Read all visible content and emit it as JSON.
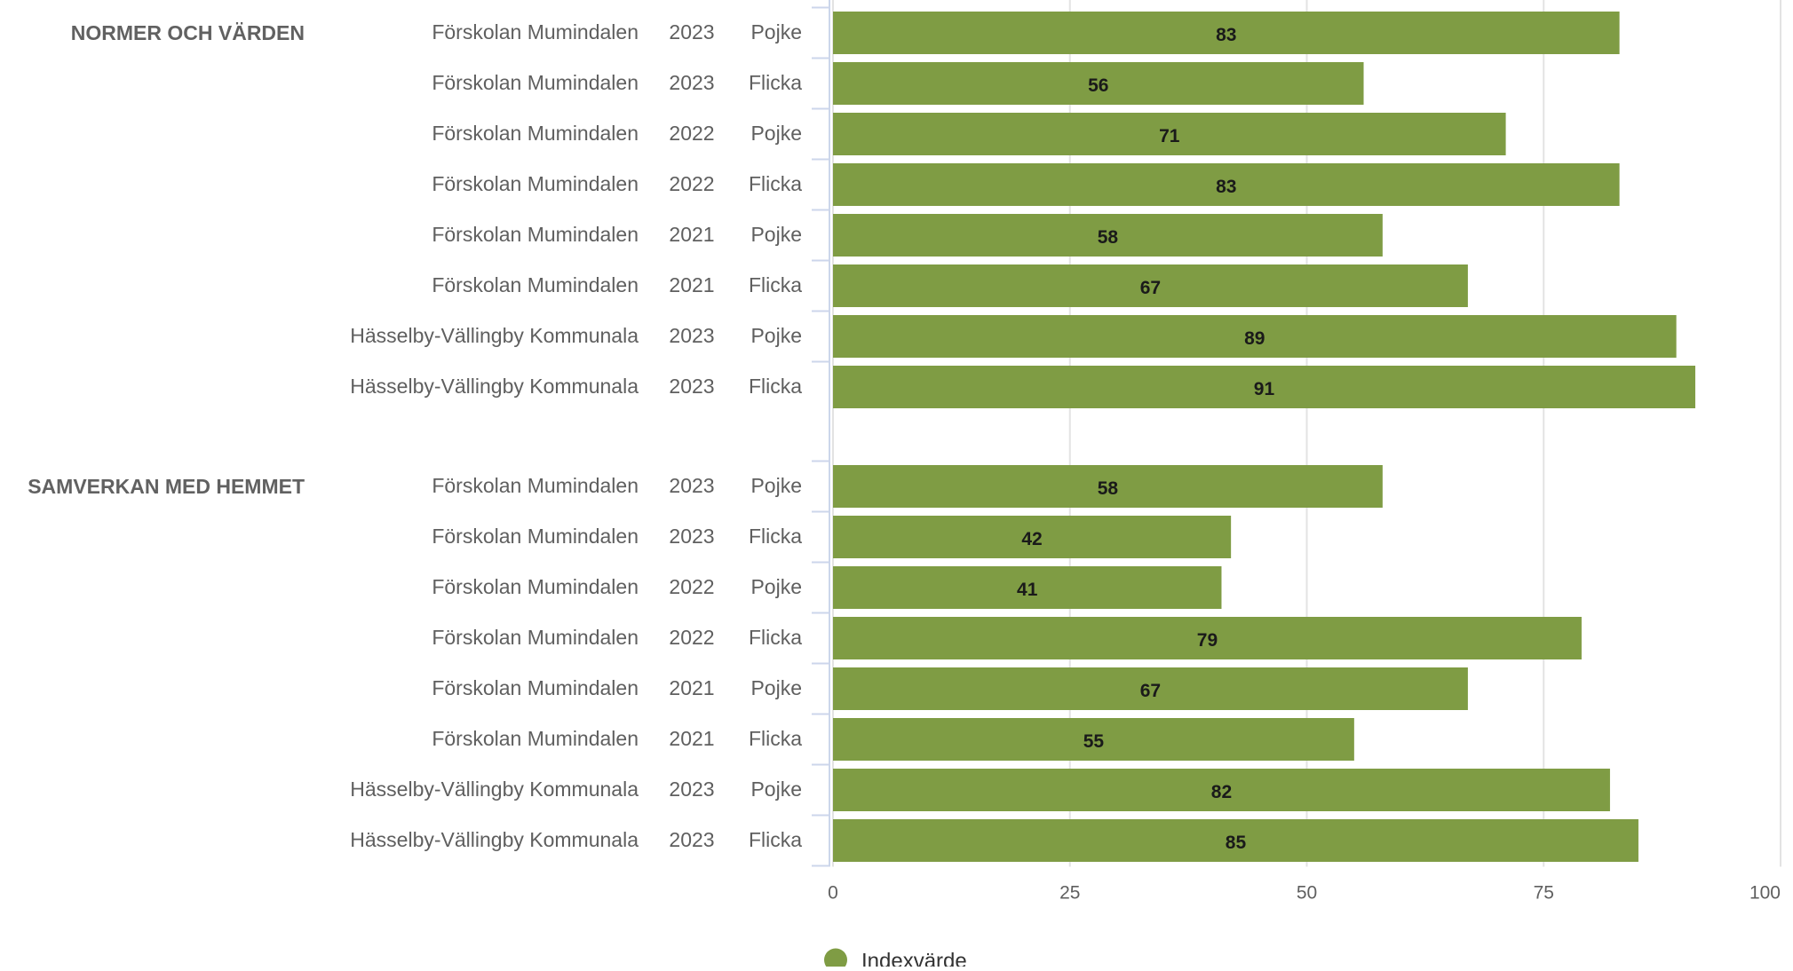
{
  "chart_data": {
    "type": "bar",
    "orientation": "horizontal",
    "xlim": [
      0,
      100
    ],
    "xticks": [
      0,
      25,
      50,
      75,
      100
    ],
    "grid": true,
    "legend_position": "bottom",
    "bar_color": "#7f9c44",
    "series": [
      {
        "name": "Indexvärde"
      }
    ],
    "groups": [
      {
        "label": "NORMER OCH VÄRDEN",
        "rows": [
          {
            "unit": "Förskolan Mumindalen",
            "year": "2023",
            "gender": "Pojke",
            "value": 83
          },
          {
            "unit": "Förskolan Mumindalen",
            "year": "2023",
            "gender": "Flicka",
            "value": 56
          },
          {
            "unit": "Förskolan Mumindalen",
            "year": "2022",
            "gender": "Pojke",
            "value": 71
          },
          {
            "unit": "Förskolan Mumindalen",
            "year": "2022",
            "gender": "Flicka",
            "value": 83
          },
          {
            "unit": "Förskolan Mumindalen",
            "year": "2021",
            "gender": "Pojke",
            "value": 58
          },
          {
            "unit": "Förskolan Mumindalen",
            "year": "2021",
            "gender": "Flicka",
            "value": 67
          },
          {
            "unit": "Hässelby-Vällingby Kommunala",
            "year": "2023",
            "gender": "Pojke",
            "value": 89
          },
          {
            "unit": "Hässelby-Vällingby Kommunala",
            "year": "2023",
            "gender": "Flicka",
            "value": 91
          }
        ]
      },
      {
        "label": "SAMVERKAN MED HEMMET",
        "rows": [
          {
            "unit": "Förskolan Mumindalen",
            "year": "2023",
            "gender": "Pojke",
            "value": 58
          },
          {
            "unit": "Förskolan Mumindalen",
            "year": "2023",
            "gender": "Flicka",
            "value": 42
          },
          {
            "unit": "Förskolan Mumindalen",
            "year": "2022",
            "gender": "Pojke",
            "value": 41
          },
          {
            "unit": "Förskolan Mumindalen",
            "year": "2022",
            "gender": "Flicka",
            "value": 79
          },
          {
            "unit": "Förskolan Mumindalen",
            "year": "2021",
            "gender": "Pojke",
            "value": 67
          },
          {
            "unit": "Förskolan Mumindalen",
            "year": "2021",
            "gender": "Flicka",
            "value": 55
          },
          {
            "unit": "Hässelby-Vällingby Kommunala",
            "year": "2023",
            "gender": "Pojke",
            "value": 82
          },
          {
            "unit": "Hässelby-Vällingby Kommunala",
            "year": "2023",
            "gender": "Flicka",
            "value": 85
          }
        ]
      }
    ]
  }
}
